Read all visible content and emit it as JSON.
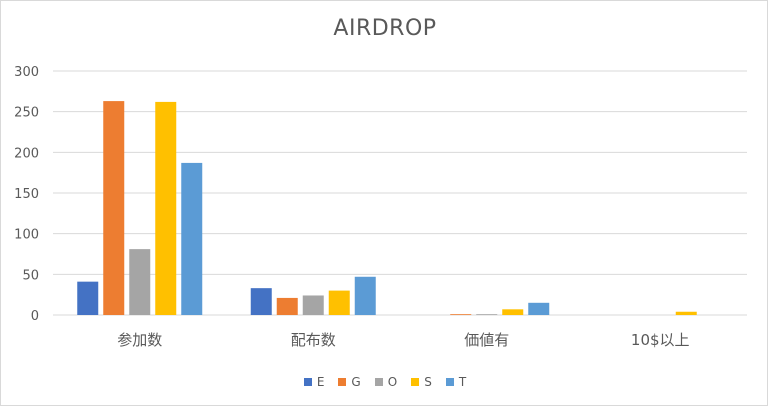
{
  "chart_data": {
    "type": "bar",
    "title": "AIRDROP",
    "categories": [
      "参加数",
      "配布数",
      "価値有",
      "10$以上"
    ],
    "series": [
      {
        "name": "E",
        "color": "#4472C4",
        "values": [
          41,
          33,
          0,
          0
        ]
      },
      {
        "name": "G",
        "color": "#ED7D31",
        "values": [
          263,
          21,
          1,
          0
        ]
      },
      {
        "name": "O",
        "color": "#A5A5A5",
        "values": [
          81,
          24,
          1,
          0
        ]
      },
      {
        "name": "S",
        "color": "#FFC000",
        "values": [
          262,
          30,
          7,
          4
        ]
      },
      {
        "name": "T",
        "color": "#5B9BD5",
        "values": [
          187,
          47,
          15,
          0
        ]
      }
    ],
    "ylim": [
      0,
      300
    ],
    "yticks": [
      0,
      50,
      100,
      150,
      200,
      250,
      300
    ],
    "grid": true,
    "legend_position": "bottom",
    "gridline_color": "#d9d9d9",
    "text_color": "#595959"
  }
}
